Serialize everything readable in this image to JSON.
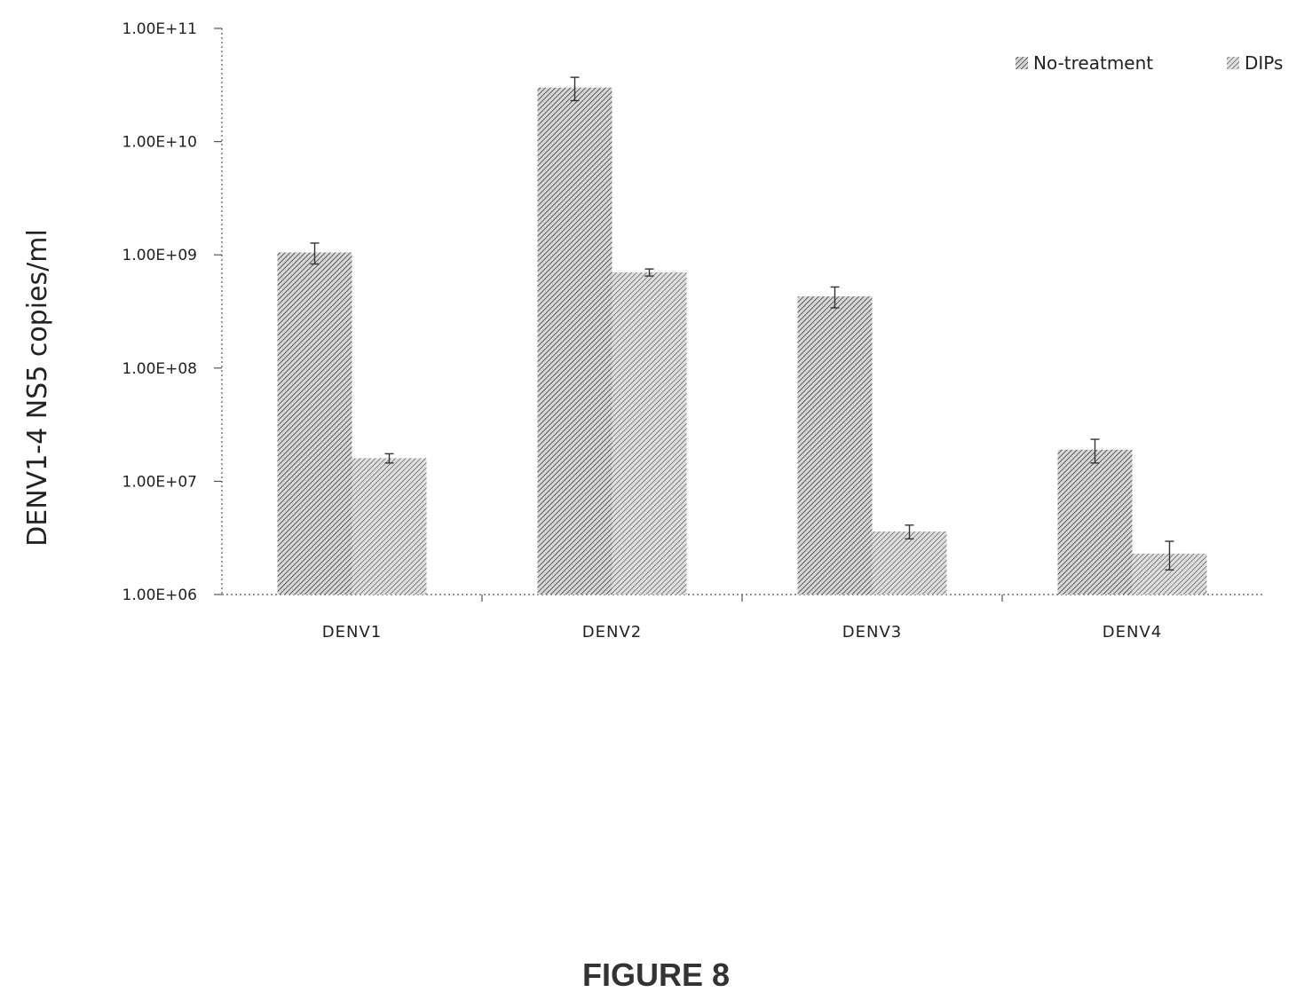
{
  "chart_data": {
    "type": "bar",
    "scale": "log",
    "categories": [
      "DENV1",
      "DENV2",
      "DENV3",
      "DENV4"
    ],
    "series": [
      {
        "name": "No-treatment",
        "values": [
          1050000000.0,
          30000000000.0,
          430000000.0,
          19000000.0
        ],
        "errors": [
          220000000.0,
          7000000000.0,
          90000000.0,
          4500000.0
        ]
      },
      {
        "name": "DIPs",
        "values": [
          16000000.0,
          700000000.0,
          3600000.0,
          2300000.0
        ],
        "errors": [
          1500000.0,
          50000000.0,
          500000.0,
          650000.0
        ]
      }
    ],
    "ylabel": "DENV1-4 NS5 copies/ml",
    "xlabel": "",
    "title": "",
    "ylim": [
      1000000,
      100000000000
    ],
    "yticks": [
      {
        "value": 1000000,
        "label": "1.00E+06"
      },
      {
        "value": 10000000,
        "label": "1.00E+07"
      },
      {
        "value": 100000000,
        "label": "1.00E+08"
      },
      {
        "value": 1000000000,
        "label": "1.00E+09"
      },
      {
        "value": 10000000000,
        "label": "1.00E+10"
      },
      {
        "value": 100000000000,
        "label": "1.00E+11"
      }
    ],
    "legend_position": "top-right",
    "grid": false
  },
  "caption": "FIGURE 8"
}
